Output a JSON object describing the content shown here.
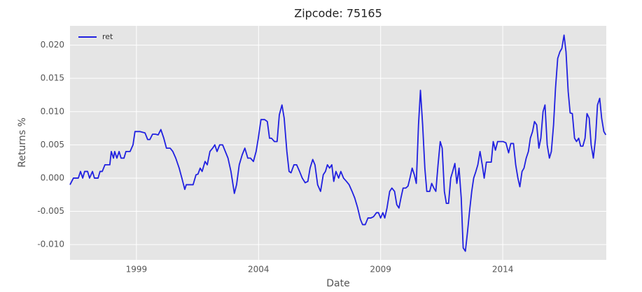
{
  "chart_data": {
    "type": "line",
    "title": "Zipcode: 75165",
    "xlabel": "Date",
    "ylabel": "Returns %",
    "x": [
      1996.28,
      1996.42,
      1996.62,
      1996.71,
      1996.8,
      1996.88,
      1997.0,
      1997.08,
      1997.2,
      1997.28,
      1997.43,
      1997.51,
      1997.6,
      1997.71,
      1997.91,
      1997.97,
      1998.06,
      1998.11,
      1998.2,
      1998.29,
      1998.37,
      1998.49,
      1998.57,
      1998.74,
      1998.86,
      1998.94,
      1999.15,
      1999.35,
      1999.46,
      1999.55,
      1999.66,
      1999.78,
      1999.89,
      2000.0,
      2000.12,
      2000.23,
      2000.38,
      2000.49,
      2000.61,
      2000.75,
      2000.86,
      2000.98,
      2001.04,
      2001.15,
      2001.32,
      2001.44,
      2001.52,
      2001.61,
      2001.69,
      2001.81,
      2001.9,
      2002.01,
      2002.12,
      2002.21,
      2002.3,
      2002.41,
      2002.53,
      2002.64,
      2002.75,
      2002.87,
      2003.01,
      2003.1,
      2003.21,
      2003.33,
      2003.44,
      2003.56,
      2003.67,
      2003.79,
      2003.9,
      2003.99,
      2004.1,
      2004.25,
      2004.36,
      2004.45,
      2004.53,
      2004.65,
      2004.76,
      2004.85,
      2004.96,
      2005.05,
      2005.16,
      2005.25,
      2005.33,
      2005.45,
      2005.56,
      2005.68,
      2005.79,
      2005.91,
      2006.02,
      2006.11,
      2006.22,
      2006.31,
      2006.42,
      2006.54,
      2006.65,
      2006.74,
      2006.82,
      2006.91,
      2007.0,
      2007.08,
      2007.17,
      2007.28,
      2007.37,
      2007.48,
      2007.6,
      2007.71,
      2007.83,
      2007.94,
      2008.06,
      2008.17,
      2008.26,
      2008.37,
      2008.48,
      2008.6,
      2008.71,
      2008.83,
      2008.91,
      2009.0,
      2009.09,
      2009.17,
      2009.26,
      2009.37,
      2009.46,
      2009.57,
      2009.66,
      2009.75,
      2009.83,
      2009.92,
      2010.03,
      2010.12,
      2010.2,
      2010.29,
      2010.38,
      2010.46,
      2010.55,
      2010.63,
      2010.72,
      2010.81,
      2010.89,
      2011.01,
      2011.09,
      2011.18,
      2011.26,
      2011.35,
      2011.44,
      2011.52,
      2011.61,
      2011.69,
      2011.78,
      2011.87,
      2011.95,
      2012.04,
      2012.12,
      2012.21,
      2012.3,
      2012.38,
      2012.47,
      2012.56,
      2012.64,
      2012.73,
      2012.81,
      2012.9,
      2012.98,
      2013.07,
      2013.16,
      2013.24,
      2013.33,
      2013.41,
      2013.53,
      2013.61,
      2013.7,
      2013.79,
      2013.9,
      2014.01,
      2014.13,
      2014.24,
      2014.33,
      2014.44,
      2014.53,
      2014.62,
      2014.7,
      2014.79,
      2014.87,
      2014.96,
      2015.05,
      2015.13,
      2015.22,
      2015.3,
      2015.39,
      2015.48,
      2015.56,
      2015.65,
      2015.73,
      2015.82,
      2015.91,
      2015.99,
      2016.08,
      2016.16,
      2016.25,
      2016.34,
      2016.42,
      2016.51,
      2016.59,
      2016.68,
      2016.76,
      2016.85,
      2016.94,
      2017.02,
      2017.11,
      2017.19,
      2017.28,
      2017.37,
      2017.45,
      2017.54,
      2017.62,
      2017.71,
      2017.8,
      2017.88,
      2017.97,
      2018.05,
      2018.14,
      2018.22
    ],
    "series": [
      {
        "name": "ret",
        "color": "#2020e0",
        "values": [
          -0.001,
          0.0,
          0.0,
          0.001,
          0.0,
          0.001,
          0.001,
          0.0,
          0.001,
          0.0,
          0.0,
          0.001,
          0.001,
          0.002,
          0.002,
          0.004,
          0.003,
          0.004,
          0.003,
          0.004,
          0.003,
          0.003,
          0.004,
          0.004,
          0.005,
          0.007,
          0.007,
          0.0068,
          0.0058,
          0.0058,
          0.0066,
          0.0066,
          0.0065,
          0.0073,
          0.006,
          0.0045,
          0.0045,
          0.004,
          0.003,
          0.0015,
          0.0,
          -0.0017,
          -0.001,
          -0.001,
          -0.001,
          0.0005,
          0.0006,
          0.0015,
          0.001,
          0.0025,
          0.002,
          0.004,
          0.0045,
          0.005,
          0.004,
          0.005,
          0.005,
          0.004,
          0.003,
          0.001,
          -0.0023,
          -0.001,
          0.002,
          0.0035,
          0.0045,
          0.003,
          0.003,
          0.0025,
          0.004,
          0.006,
          0.0088,
          0.0088,
          0.0085,
          0.006,
          0.006,
          0.0055,
          0.0055,
          0.0095,
          0.011,
          0.009,
          0.004,
          0.001,
          0.0008,
          0.002,
          0.002,
          0.001,
          0.0,
          -0.0007,
          -0.0005,
          0.0015,
          0.0028,
          0.002,
          -0.001,
          -0.002,
          0.0005,
          0.001,
          0.002,
          0.0015,
          0.002,
          -0.0005,
          0.001,
          0.0,
          0.001,
          0.0,
          -0.0005,
          -0.001,
          -0.002,
          -0.003,
          -0.0045,
          -0.0062,
          -0.007,
          -0.007,
          -0.006,
          -0.006,
          -0.0058,
          -0.0052,
          -0.0052,
          -0.006,
          -0.0052,
          -0.006,
          -0.0045,
          -0.002,
          -0.0015,
          -0.002,
          -0.004,
          -0.0045,
          -0.003,
          -0.0015,
          -0.0015,
          -0.0012,
          0.0,
          0.0015,
          0.0005,
          -0.0008,
          0.008,
          0.0132,
          0.008,
          0.0015,
          -0.002,
          -0.002,
          -0.0008,
          -0.0015,
          -0.002,
          0.002,
          0.0055,
          0.0045,
          -0.002,
          -0.0038,
          -0.0038,
          0.0,
          0.001,
          0.0022,
          -0.0008,
          0.0015,
          -0.003,
          -0.0105,
          -0.011,
          -0.008,
          -0.005,
          -0.002,
          0.0,
          0.001,
          0.002,
          0.004,
          0.002,
          0.0,
          0.0024,
          0.0024,
          0.0024,
          0.0055,
          0.0042,
          0.0055,
          0.0055,
          0.0055,
          0.0053,
          0.0038,
          0.0052,
          0.0052,
          0.002,
          0.0,
          -0.0013,
          0.001,
          0.0015,
          0.003,
          0.004,
          0.006,
          0.007,
          0.0085,
          0.008,
          0.0045,
          0.006,
          0.01,
          0.011,
          0.005,
          0.003,
          0.004,
          0.008,
          0.0135,
          0.018,
          0.019,
          0.0195,
          0.0215,
          0.019,
          0.013,
          0.0098,
          0.0097,
          0.006,
          0.0055,
          0.006,
          0.0048,
          0.0048,
          0.006,
          0.0097,
          0.009,
          0.005,
          0.003,
          0.006,
          0.011,
          0.012,
          0.009,
          0.007,
          0.0065
        ]
      }
    ],
    "xlim": [
      1996.28,
      2018.24
    ],
    "xticks": [
      1999,
      2004,
      2009,
      2014
    ],
    "ylim": [
      -0.0123,
      0.0229
    ],
    "yticks": [
      {
        "value": -0.01,
        "label": "-0.010"
      },
      -0.005,
      {
        "value": 0,
        "label": "0.000"
      },
      0.005,
      {
        "value": 0.01,
        "label": "0.010"
      },
      0.015,
      {
        "value": 0.02,
        "label": "0.020"
      }
    ],
    "grid": true,
    "legend": "upper left"
  }
}
